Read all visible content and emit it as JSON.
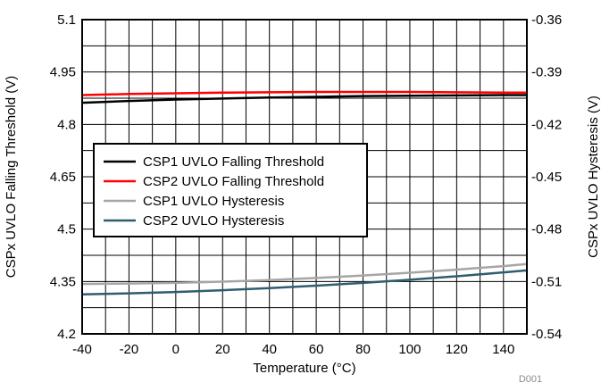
{
  "chart_data": {
    "type": "line",
    "xlabel": "Temperature (°C)",
    "ylabel_left": "CSPx UVLO Falling Threshold (V)",
    "ylabel_right": "CSPx UVLO Hysteresis (V)",
    "watermark": "D001",
    "xlim": [
      -40,
      150
    ],
    "ylim_left": [
      4.2,
      5.1
    ],
    "ylim_right": [
      -0.54,
      -0.36
    ],
    "x_ticks": [
      -40,
      -20,
      0,
      20,
      40,
      60,
      80,
      100,
      120,
      140
    ],
    "x_tick_labels": [
      "-40",
      "-20",
      "0",
      "20",
      "40",
      "60",
      "80",
      "100",
      "120",
      "140"
    ],
    "y_left_ticks": [
      4.2,
      4.35,
      4.5,
      4.65,
      4.8,
      4.95,
      5.1
    ],
    "y_left_tick_labels": [
      "4.2",
      "4.35",
      "4.5",
      "4.65",
      "4.8",
      "4.95",
      "5.1"
    ],
    "y_right_ticks": [
      -0.54,
      -0.51,
      -0.48,
      -0.45,
      -0.42,
      -0.39,
      -0.36
    ],
    "y_right_tick_labels": [
      "-0.54",
      "-0.51",
      "-0.48",
      "-0.45",
      "-0.42",
      "-0.39",
      "-0.36"
    ],
    "x_minor_step": 10,
    "y_minor_step": 0.075,
    "grid": true,
    "legend_position": "center-left",
    "series": [
      {
        "name": "CSP1 UVLO Falling Threshold",
        "axis": "left",
        "color": "#000000",
        "x": [
          -40,
          -20,
          0,
          20,
          40,
          60,
          80,
          100,
          120,
          140,
          150
        ],
        "y": [
          4.862,
          4.867,
          4.871,
          4.874,
          4.877,
          4.879,
          4.881,
          4.882,
          4.883,
          4.884,
          4.884
        ]
      },
      {
        "name": "CSP2 UVLO Falling Threshold",
        "axis": "left",
        "color": "#ff0000",
        "x": [
          -40,
          -20,
          0,
          20,
          40,
          60,
          80,
          100,
          120,
          140,
          150
        ],
        "y": [
          4.884,
          4.887,
          4.889,
          4.891,
          4.892,
          4.893,
          4.893,
          4.893,
          4.892,
          4.891,
          4.891
        ]
      },
      {
        "name": "CSP1 UVLO Hysteresis",
        "axis": "right",
        "color": "#a6a6a6",
        "x": [
          -40,
          -20,
          0,
          20,
          40,
          60,
          80,
          100,
          120,
          140,
          150
        ],
        "y": [
          -0.5114,
          -0.5112,
          -0.5108,
          -0.5101,
          -0.5092,
          -0.508,
          -0.5066,
          -0.505,
          -0.5032,
          -0.5012,
          -0.5
        ]
      },
      {
        "name": "CSP2 UVLO Hysteresis",
        "axis": "right",
        "color": "#2e5e6e",
        "x": [
          -40,
          -20,
          0,
          20,
          40,
          60,
          80,
          100,
          120,
          140,
          150
        ],
        "y": [
          -0.5174,
          -0.5168,
          -0.516,
          -0.515,
          -0.5138,
          -0.5124,
          -0.5108,
          -0.509,
          -0.507,
          -0.5048,
          -0.5036
        ]
      }
    ]
  }
}
